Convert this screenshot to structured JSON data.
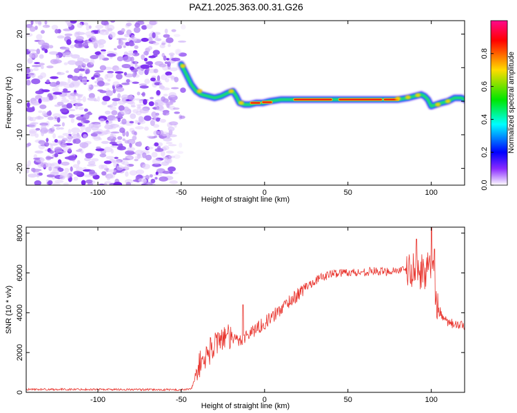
{
  "title": "PAZ1.2025.363.00.31.G26",
  "colors": {
    "snr_line": "#e8312a",
    "colorbar": [
      "#ff00ff",
      "#ff0000",
      "#ffff00",
      "#00ff00",
      "#00ffff",
      "#0000ff",
      "#7a00ff",
      "#ffffff"
    ]
  },
  "chart_data": [
    {
      "type": "heatmap",
      "name": "spectrogram",
      "xlabel": "Height of straight line (km)",
      "ylabel": "Frequency (Hz)",
      "xlim": [
        -143,
        120
      ],
      "ylim": [
        -25,
        24
      ],
      "xticks": [
        -100,
        -50,
        0,
        50,
        100
      ],
      "yticks": [
        -20,
        -10,
        0,
        10,
        20
      ],
      "ridge": {
        "x": [
          -50,
          -47,
          -44,
          -41,
          -38,
          -34,
          -30,
          -26,
          -22,
          -19,
          -17,
          -15,
          -12,
          -9,
          -5,
          -1,
          3,
          10,
          20,
          30,
          40,
          50,
          60,
          70,
          80,
          86,
          90,
          94,
          96,
          98,
          100,
          103,
          106,
          110,
          114,
          118,
          120
        ],
        "y": [
          11,
          8,
          5,
          3,
          2,
          1.5,
          1,
          1.5,
          2.5,
          3,
          1.5,
          -0.5,
          -1,
          -1,
          -0.5,
          -0.5,
          0,
          0.5,
          0.5,
          0.5,
          0.5,
          0.5,
          0.5,
          0.5,
          0.5,
          1,
          1.5,
          2,
          1.5,
          0.5,
          -1.5,
          -1,
          -0.5,
          0,
          1,
          1,
          0.5
        ]
      },
      "noise_region_x": [
        -143,
        -48
      ],
      "colorbar": {
        "label": "Normalized spectral amplitude",
        "range": [
          0,
          1
        ],
        "ticks": [
          0,
          0.2,
          0.4,
          0.6,
          0.8
        ],
        "tick_labels": [
          "0.0",
          "0.2",
          "0.4",
          "0.6",
          "0.8"
        ]
      }
    },
    {
      "type": "line",
      "name": "snr",
      "xlabel": "Height of straight line (km)",
      "ylabel": "SNR (10 * v/v)",
      "xlim": [
        -143,
        120
      ],
      "ylim": [
        0,
        8300
      ],
      "xticks": [
        -100,
        -50,
        0,
        50,
        100
      ],
      "yticks": [
        0,
        2000,
        4000,
        6000,
        8000
      ],
      "envelope": {
        "x": [
          -143,
          -100,
          -60,
          -48,
          -44,
          -42,
          -40,
          -35,
          -30,
          -25,
          -20,
          -15,
          -10,
          -5,
          0,
          5,
          10,
          15,
          20,
          25,
          30,
          35,
          40,
          45,
          50,
          55,
          60,
          65,
          70,
          75,
          80,
          85,
          90,
          95,
          100,
          102,
          104,
          106,
          110,
          115,
          120
        ],
        "y": [
          150,
          150,
          130,
          130,
          180,
          600,
          1300,
          1800,
          2400,
          2800,
          2700,
          2600,
          2900,
          3200,
          3500,
          3800,
          4200,
          4600,
          4900,
          5300,
          5600,
          5800,
          5950,
          6000,
          6050,
          6000,
          6050,
          6100,
          6050,
          6100,
          6150,
          6100,
          6100,
          6050,
          6200,
          5500,
          4200,
          3700,
          3500,
          3400,
          3300
        ]
      },
      "notable_points": [
        {
          "x": -28,
          "y": 3000
        },
        {
          "x": -13,
          "y": 4400
        },
        {
          "x": 91,
          "y": 7700
        },
        {
          "x": 100,
          "y": 8300
        },
        {
          "x": 102,
          "y": 7200
        }
      ]
    }
  ]
}
